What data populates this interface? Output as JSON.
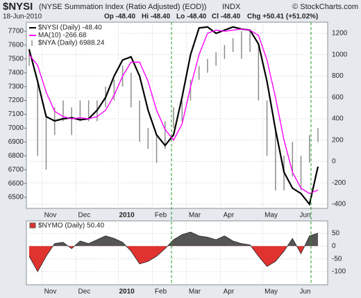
{
  "header": {
    "symbol": "$NYSI",
    "name": "(NYSE Summation Index (Ratio Adjusted) (EOD))",
    "exchange": "INDX",
    "copyright": "© StockCharts.com",
    "date": "18-Jun-2010",
    "quote": [
      "Op -48.40",
      "Hi -48.40",
      "Lo -48.40",
      "Cl -48.40",
      "Chg +50.41 (+51.02%)"
    ]
  },
  "chart_data": [
    {
      "type": "line",
      "categories": [
        null,
        null,
        "Nov",
        null,
        null,
        null,
        "Dec",
        null,
        null,
        null,
        null,
        "2010",
        null,
        null,
        null,
        "Feb",
        null,
        null,
        null,
        "Mar",
        null,
        null,
        null,
        "Apr",
        null,
        null,
        null,
        null,
        "May",
        null,
        null,
        null,
        "Jun",
        null,
        null
      ],
      "ylim": [
        6420,
        7765
      ],
      "yticks": [
        6500,
        6600,
        6700,
        6800,
        6900,
        7000,
        7100,
        7200,
        7300,
        7400,
        7500,
        7600,
        7700
      ],
      "y2lim": [
        -439,
        1304
      ],
      "y2ticks": [
        -400,
        -200,
        0,
        200,
        400,
        600,
        800,
        1000,
        1200
      ],
      "grid": true,
      "series": [
        {
          "name": "$NYSI (Daily) -48.40",
          "color": "#000000",
          "axis": "y2",
          "values": [
            1050,
            750,
            420,
            380,
            400,
            410,
            390,
            400,
            480,
            600,
            800,
            950,
            980,
            800,
            480,
            250,
            150,
            250,
            600,
            1000,
            1250,
            1260,
            1200,
            1230,
            1260,
            1240,
            1230,
            1100,
            750,
            300,
            -100,
            -250,
            -300,
            -400,
            -48.4
          ]
        },
        {
          "name": "MA(10) -266.68",
          "color": "#ff00ff",
          "axis": "y2",
          "values": [
            1000,
            900,
            650,
            470,
            420,
            400,
            410,
            400,
            420,
            480,
            620,
            800,
            930,
            930,
            750,
            480,
            300,
            200,
            350,
            700,
            1000,
            1200,
            1230,
            1220,
            1230,
            1240,
            1230,
            1180,
            950,
            600,
            200,
            -100,
            -250,
            -300,
            -266.68
          ]
        },
        {
          "name": "$NYA (Daily) 6988.24",
          "color": "#8c8c8c",
          "high": [
            7600,
            7350,
            7100,
            7150,
            7200,
            7150,
            7200,
            7200,
            7200,
            7300,
            7350,
            7450,
            7400,
            7200,
            7000,
            6950,
            7050,
            7150,
            7200,
            7350,
            7450,
            7500,
            7550,
            7600,
            7650,
            7700,
            7700,
            7600,
            7200,
            7000,
            6800,
            6900,
            6800,
            6950,
            7000
          ],
          "low": [
            7450,
            6800,
            6700,
            6950,
            7050,
            6950,
            7050,
            7050,
            7050,
            7150,
            7200,
            7300,
            7150,
            6900,
            6850,
            6750,
            6850,
            7000,
            7050,
            7200,
            7350,
            7400,
            7450,
            7500,
            7550,
            7500,
            7550,
            7200,
            6800,
            6550,
            6550,
            6650,
            6550,
            6750,
            6900
          ]
        }
      ]
    },
    {
      "type": "area",
      "categories": [
        null,
        null,
        "Nov",
        null,
        null,
        null,
        "Dec",
        null,
        null,
        null,
        null,
        "2010",
        null,
        null,
        null,
        "Feb",
        null,
        null,
        null,
        "Mar",
        null,
        null,
        null,
        "Apr",
        null,
        null,
        null,
        null,
        "May",
        null,
        null,
        null,
        "Jun",
        null,
        null
      ],
      "ylim": [
        -152,
        99
      ],
      "yticks": [
        -100,
        -50,
        0,
        50
      ],
      "grid": true,
      "series": [
        {
          "name": "$NYMO (Daily) 50.40",
          "color": "#555555",
          "negative_color": "#e0332f",
          "values": [
            -40,
            -100,
            -40,
            10,
            15,
            -10,
            20,
            10,
            25,
            40,
            30,
            15,
            -20,
            -70,
            -60,
            -40,
            -10,
            25,
            45,
            55,
            40,
            35,
            25,
            40,
            20,
            10,
            5,
            -40,
            -80,
            -60,
            -20,
            30,
            -30,
            40,
            50.4
          ]
        }
      ]
    }
  ]
}
